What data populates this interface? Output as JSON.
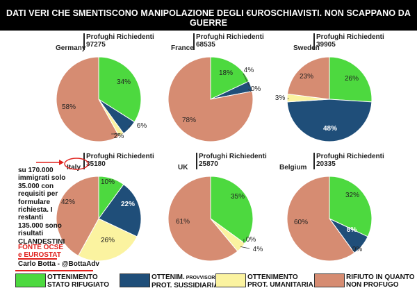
{
  "title": "DATI VERI CHE SMENTISCONO MANIPOLAZIONE DEGLI €UROSCHIAVISTI. NON SCAPPANO DA GUERRE",
  "applicants_label": "Profughi Richiedenti",
  "colors": {
    "refugee": "#4dd93f",
    "subsidiary": "#1f4e79",
    "humanitarian": "#fbf3a0",
    "rejected": "#d68c72",
    "red_annotation": "#e0201c"
  },
  "legend": [
    {
      "line1": "OTTENIMENTO",
      "line1_small": "",
      "line2": "STATO RIFUGIATO",
      "color": "#4dd93f"
    },
    {
      "line1": "OTTENIM.",
      "line1_small": " PROVVISORIO",
      "line2": "PROT. SUSSIDIARIA",
      "color": "#1f4e79"
    },
    {
      "line1": "OTTENIMENTO",
      "line1_small": "",
      "line2": "PROT. UMANITARIA",
      "color": "#fbf3a0"
    },
    {
      "line1": "RIFIUTO IN QUANTO",
      "line1_small": "",
      "line2": "NON PROFUGO",
      "color": "#d68c72"
    }
  ],
  "side_note": "su 170.000 immigrati solo 35.000 con requisiti per formulare richiesta. I restanti 135.000 sono risultati CLANDESTINI",
  "source_note": {
    "line1": "FONTE OCSE",
    "line2": "e EUROSTAT"
  },
  "author": "Carlo Botta - @BottaAdv",
  "chart_data": [
    {
      "type": "pie",
      "country": "Germany",
      "applicants": "97275",
      "categories": [
        "Stato rifugiato",
        "Prot. sussidiaria",
        "Prot. umanitaria",
        "Rifiuto"
      ],
      "values": [
        34,
        6,
        2,
        58
      ],
      "labels": [
        "34%",
        "6%",
        "2%",
        "58%"
      ]
    },
    {
      "type": "pie",
      "country": "France",
      "applicants": "68535",
      "categories": [
        "Stato rifugiato",
        "Prot. sussidiaria",
        "Prot. umanitaria",
        "Rifiuto"
      ],
      "values": [
        18,
        4,
        0,
        78
      ],
      "labels": [
        "18%",
        "4%",
        "0%",
        "78%"
      ]
    },
    {
      "type": "pie",
      "country": "Sweden",
      "applicants": "39905",
      "categories": [
        "Stato rifugiato",
        "Prot. sussidiaria",
        "Prot. umanitaria",
        "Rifiuto"
      ],
      "values": [
        26,
        48,
        3,
        23
      ],
      "labels": [
        "26%",
        "48%",
        "3%",
        "23%"
      ]
    },
    {
      "type": "pie",
      "country": "Italy",
      "applicants": "35180",
      "categories": [
        "Stato rifugiato",
        "Prot. sussidiaria",
        "Prot. umanitaria",
        "Rifiuto"
      ],
      "values": [
        10,
        22,
        26,
        42
      ],
      "labels": [
        "10%",
        "22%",
        "26%",
        "42%"
      ]
    },
    {
      "type": "pie",
      "country": "UK",
      "applicants": "25870",
      "categories": [
        "Stato rifugiato",
        "Prot. sussidiaria",
        "Prot. umanitaria",
        "Rifiuto"
      ],
      "values": [
        35,
        0,
        4,
        61
      ],
      "labels": [
        "35%",
        "0%",
        "4%",
        "61%"
      ]
    },
    {
      "type": "pie",
      "country": "Belgium",
      "applicants": "20335",
      "categories": [
        "Stato rifugiato",
        "Prot. sussidiaria",
        "Prot. umanitaria",
        "Rifiuto"
      ],
      "values": [
        32,
        8,
        0,
        60
      ],
      "labels": [
        "32%",
        "8%",
        "0%",
        "60%"
      ]
    }
  ]
}
